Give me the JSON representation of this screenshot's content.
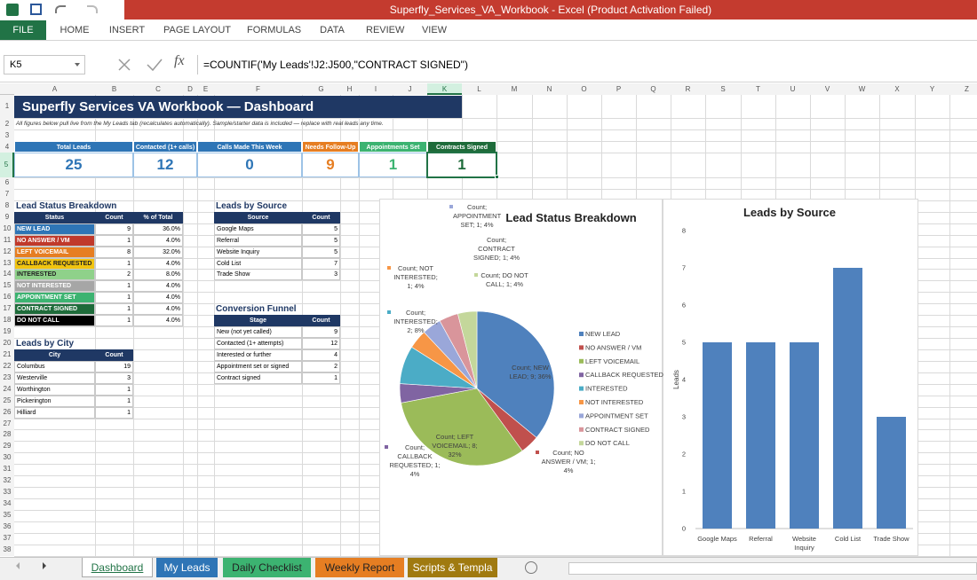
{
  "window": {
    "title": "Superfly_Services_VA_Workbook -  Excel (Product Activation Failed)"
  },
  "ribbon": {
    "tabs": [
      "FILE",
      "HOME",
      "INSERT",
      "PAGE LAYOUT",
      "FORMULAS",
      "DATA",
      "REVIEW",
      "VIEW"
    ]
  },
  "formula_bar": {
    "name_box": "K5",
    "fx": "fx",
    "formula": "=COUNTIF('My Leads'!J2:J500,\"CONTRACT SIGNED\")"
  },
  "grid": {
    "columns": [
      "A",
      "B",
      "C",
      "D",
      "E",
      "F",
      "G",
      "H",
      "I",
      "J",
      "K",
      "L",
      "M",
      "N",
      "O",
      "P",
      "Q",
      "R",
      "S",
      "T",
      "U",
      "V",
      "W",
      "X",
      "Y",
      "Z"
    ],
    "rows": [
      1,
      2,
      3,
      4,
      5,
      6,
      7,
      8,
      9,
      10,
      11,
      12,
      13,
      14,
      15,
      16,
      17,
      18,
      19,
      20,
      21,
      22,
      23,
      24,
      25,
      26,
      27,
      28,
      29,
      30,
      31,
      32,
      33,
      34,
      35,
      36,
      37,
      38
    ]
  },
  "sheet": {
    "title": "Superfly Services VA Workbook — Dashboard",
    "note": "All figures below pull live from the My Leads tab (recalculates automatically). Sample/starter data is included — replace with real leads any time.",
    "kpis": [
      {
        "label": "Total Leads",
        "value": "25"
      },
      {
        "label": "Contacted (1+ calls)",
        "value": "12"
      },
      {
        "label": "Calls Made This Week",
        "value": "0"
      },
      {
        "label": "Needs Follow-Up",
        "value": "9"
      },
      {
        "label": "Appointments Set",
        "value": "1"
      },
      {
        "label": "Contracts Signed",
        "value": "1"
      }
    ],
    "status_table": {
      "title": "Lead Status Breakdown",
      "headers": [
        "Status",
        "Count",
        "% of Total"
      ],
      "rows": [
        [
          "NEW LEAD",
          "9",
          "36.0%"
        ],
        [
          "NO ANSWER / VM",
          "1",
          "4.0%"
        ],
        [
          "LEFT VOICEMAIL",
          "8",
          "32.0%"
        ],
        [
          "CALLBACK REQUESTED",
          "1",
          "4.0%"
        ],
        [
          "INTERESTED",
          "2",
          "8.0%"
        ],
        [
          "NOT INTERESTED",
          "1",
          "4.0%"
        ],
        [
          "APPOINTMENT SET",
          "1",
          "4.0%"
        ],
        [
          "CONTRACT SIGNED",
          "1",
          "4.0%"
        ],
        [
          "DO NOT CALL",
          "1",
          "4.0%"
        ]
      ]
    },
    "source_table": {
      "title": "Leads by Source",
      "headers": [
        "Source",
        "Count"
      ],
      "rows": [
        [
          "Google Maps",
          "5"
        ],
        [
          "Referral",
          "5"
        ],
        [
          "Website Inquiry",
          "5"
        ],
        [
          "Cold List",
          "7"
        ],
        [
          "Trade Show",
          "3"
        ]
      ]
    },
    "funnel_table": {
      "title": "Conversion Funnel",
      "headers": [
        "Stage",
        "Count"
      ],
      "rows": [
        [
          "New (not yet called)",
          "9"
        ],
        [
          "Contacted (1+ attempts)",
          "12"
        ],
        [
          "Interested or further",
          "4"
        ],
        [
          "Appointment set or signed",
          "2"
        ],
        [
          "Contract signed",
          "1"
        ]
      ]
    },
    "city_table": {
      "title": "Leads by City",
      "headers": [
        "City",
        "Count"
      ],
      "rows": [
        [
          "Columbus",
          "19"
        ],
        [
          "Westerville",
          "3"
        ],
        [
          "Worthington",
          "1"
        ],
        [
          "Pickerington",
          "1"
        ],
        [
          "Hilliard",
          "1"
        ]
      ]
    }
  },
  "chart_data": [
    {
      "type": "pie",
      "title": "Lead Status Breakdown",
      "categories": [
        "NEW LEAD",
        "NO ANSWER / VM",
        "LEFT VOICEMAIL",
        "CALLBACK REQUESTED",
        "INTERESTED",
        "NOT INTERESTED",
        "APPOINTMENT SET",
        "CONTRACT SIGNED",
        "DO NOT CALL"
      ],
      "values": [
        9,
        1,
        8,
        1,
        2,
        1,
        1,
        1,
        1
      ],
      "value_labels": [
        "Count; NEW LEAD; 9; 36%",
        "Count; NO ANSWER / VM; 1; 4%",
        "Count; LEFT VOICEMAIL; 8; 32%",
        "Count; CALLBACK REQUESTED; 1; 4%",
        "Count; INTERESTED; 2; 8%",
        "Count; NOT INTERESTED; 1; 4%",
        "Count; APPOINTMENT SET; 1; 4%",
        "Count; CONTRACT SIGNED; 1; 4%",
        "Count; DO NOT CALL; 1; 4%"
      ],
      "colors": [
        "#4f81bd",
        "#c0504d",
        "#9bbb59",
        "#8064a2",
        "#4bacc6",
        "#f79646",
        "#9aa7d9",
        "#d9959b",
        "#c4d79b"
      ],
      "legend": "right"
    },
    {
      "type": "bar",
      "title": "Leads by Source",
      "y_label": "Leads",
      "categories": [
        "Google Maps",
        "Referral",
        "Website Inquiry",
        "Cold List",
        "Trade Show"
      ],
      "values": [
        5,
        5,
        5,
        7,
        3
      ],
      "color": "#4f81bd",
      "ylim": [
        0,
        8
      ],
      "yticks": [
        0,
        1,
        2,
        3,
        4,
        5,
        6,
        7,
        8
      ],
      "grid": false
    }
  ],
  "sheet_tabs": [
    "Dashboard",
    "My Leads",
    "Daily Checklist",
    "Weekly Report",
    "Scripts & Templa"
  ]
}
